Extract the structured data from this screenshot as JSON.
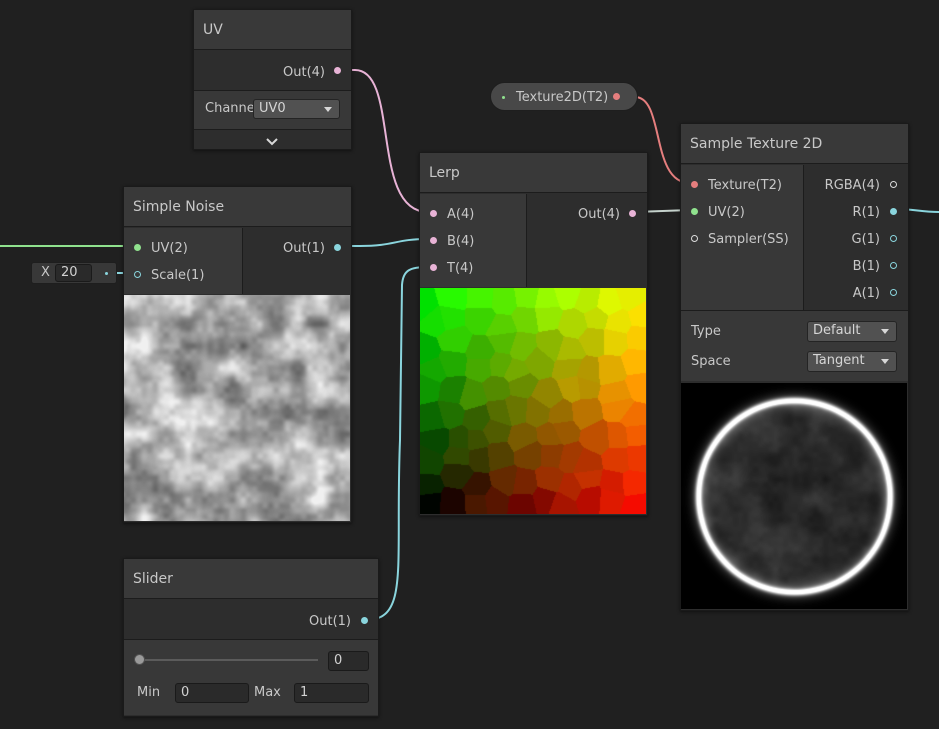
{
  "uv_node": {
    "title": "UV",
    "out_label": "Out(4)",
    "channel_label": "Channe",
    "channel_value": "UV0",
    "expand_icon": "chevron-down-icon"
  },
  "texture_prop": {
    "label": "Texture2D(T2)"
  },
  "noise_node": {
    "title": "Simple Noise",
    "inputs": [
      "UV(2)",
      "Scale(1)"
    ],
    "out_label": "Out(1)",
    "scale_field": {
      "axis": "X",
      "value": "20"
    }
  },
  "lerp_node": {
    "title": "Lerp",
    "inputs": [
      "A(4)",
      "B(4)",
      "T(4)"
    ],
    "out_label": "Out(4)"
  },
  "sample_node": {
    "title": "Sample Texture 2D",
    "inputs": [
      "Texture(T2)",
      "UV(2)",
      "Sampler(SS)"
    ],
    "outputs": [
      "RGBA(4)",
      "R(1)",
      "G(1)",
      "B(1)",
      "A(1)"
    ],
    "type_label": "Type",
    "type_value": "Default",
    "space_label": "Space",
    "space_value": "Tangent"
  },
  "slider_node": {
    "title": "Slider",
    "out_label": "Out(1)",
    "value": "0",
    "min_label": "Min",
    "min_value": "0",
    "max_label": "Max",
    "max_value": "1",
    "slider_level": 0
  },
  "colors": {
    "vector4": "#e8b3d6",
    "vector1": "#8ad5dd",
    "vector2": "#90e28e",
    "texture": "#e57e7e",
    "background": "#202020"
  }
}
